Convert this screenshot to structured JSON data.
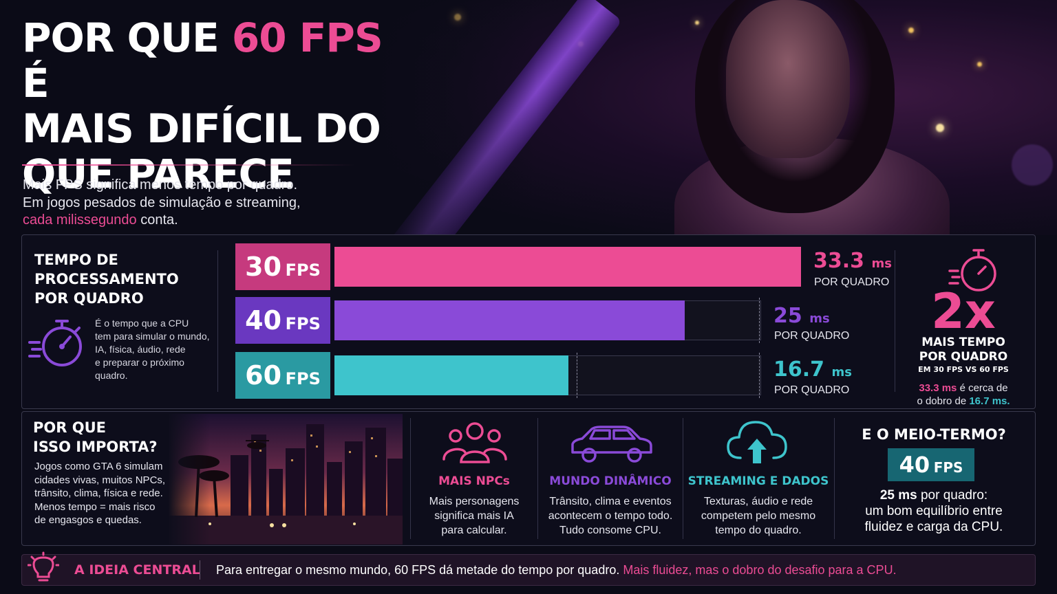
{
  "colors": {
    "pink": "#ec4c94",
    "purple": "#8a4ad8",
    "cyan": "#3ec4cc",
    "teal_box": "#176672",
    "background": "#0b0b17"
  },
  "header": {
    "title_line1_start": "POR QUE",
    "title_line1_accent": "60 FPS",
    "title_line1_end": "É",
    "title_line2": "MAIS DIFÍCIL DO",
    "title_line3": "QUE PARECE",
    "intro_line1": "Mais FPS significa menos tempo por quadro.",
    "intro_line2": "Em jogos pesados de simulação e streaming,",
    "intro_highlight": "cada milissegundo",
    "intro_end": "conta."
  },
  "frame_time": {
    "heading_lines": [
      "TEMPO DE",
      "PROCESSAMENTO",
      "POR QUADRO"
    ],
    "description_lines": [
      "É o tempo que a CPU",
      "tem para simular o mundo,",
      "IA, física, áudio, rede",
      "e preparar o próximo",
      "quadro."
    ],
    "icon": "stopwatch-icon"
  },
  "chart_data": {
    "type": "bar",
    "orientation": "horizontal",
    "categories": [
      "30 FPS",
      "40 FPS",
      "60 FPS"
    ],
    "values": [
      33.3,
      25,
      16.7
    ],
    "unit": "ms",
    "value_labels": [
      "33.3",
      "25",
      "16.7"
    ],
    "unit_label": "ms",
    "sub_label": "POR QUADRO",
    "fps_numbers": [
      "30",
      "40",
      "60"
    ],
    "fps_unit": "FPS",
    "colors": [
      "#ec4c94",
      "#8a4ad8",
      "#3ec4cc"
    ],
    "xlim": [
      0,
      33.3
    ],
    "grid": false
  },
  "comparison": {
    "icon": "stopwatch-icon",
    "big": "2x",
    "line1": "MAIS TEMPO",
    "line2": "POR QUADRO",
    "line3": "EM 30 FPS VS 60 FPS",
    "note_value1": "33.3 ms",
    "note_text1": "é cerca de",
    "note_text2": "o dobro de",
    "note_value2": "16.7 ms."
  },
  "importance": {
    "heading_lines": [
      "POR QUE",
      "ISSO IMPORTA?"
    ],
    "text_lines": [
      "Jogos como GTA 6 simulam",
      "cidades vivas, muitos NPCs,",
      "trânsito, clima, física e rede.",
      "Menos tempo = mais risco",
      "de engasgos e quedas."
    ]
  },
  "features": [
    {
      "icon": "people-icon",
      "title": "MAIS NPCs",
      "lines": [
        "Mais personagens",
        "significa mais IA",
        "para calcular."
      ]
    },
    {
      "icon": "car-icon",
      "title": "MUNDO DINÂMICO",
      "lines": [
        "Trânsito, clima e eventos",
        "acontecem o tempo todo.",
        "Tudo consome CPU."
      ]
    },
    {
      "icon": "cloud-upload-icon",
      "title": "STREAMING E DADOS",
      "lines": [
        "Texturas, áudio e rede",
        "competem pelo mesmo",
        "tempo do quadro."
      ]
    }
  ],
  "middle": {
    "title": "E O MEIO-TERMO?",
    "fps_number": "40",
    "fps_unit": "FPS",
    "line1_bold": "25 ms",
    "line1_rest": "por quadro:",
    "line2": "um bom equilíbrio entre",
    "line3": "fluidez e carga da CPU."
  },
  "footer": {
    "icon": "lightbulb-icon",
    "label": "A IDEIA CENTRAL",
    "text": "Para entregar o mesmo mundo, 60 FPS dá metade do tempo por quadro.",
    "highlight": "Mais fluidez, mas o dobro do desafio para a CPU."
  }
}
